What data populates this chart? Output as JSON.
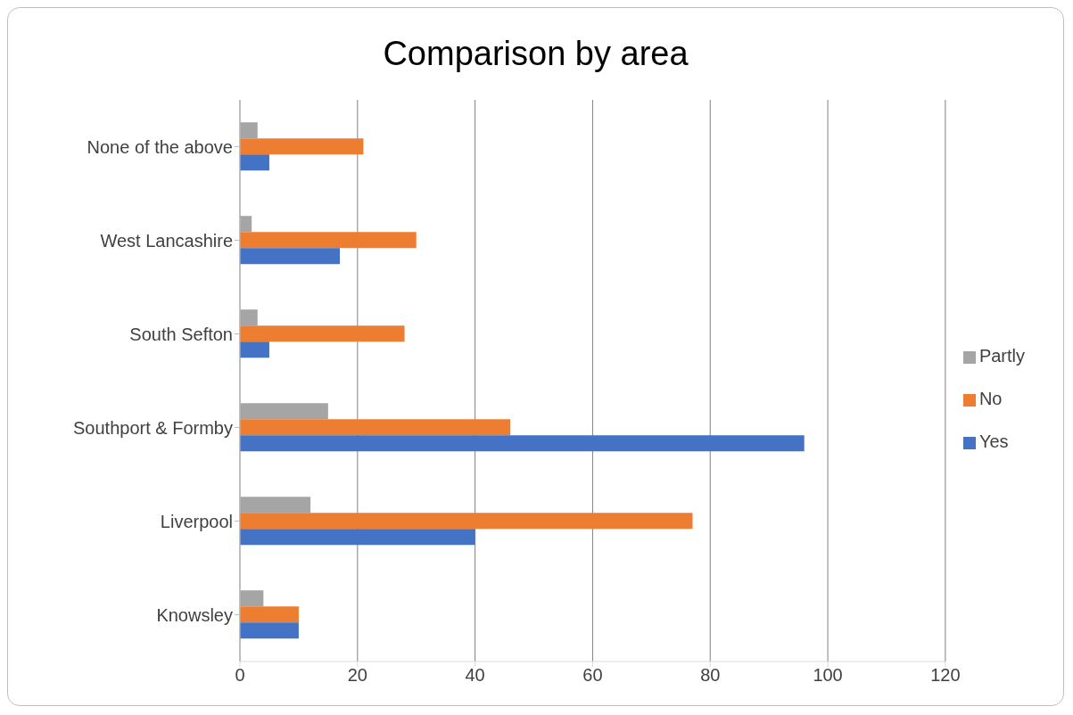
{
  "chart_data": {
    "type": "bar",
    "orientation": "horizontal",
    "title": "Comparison by area",
    "categories": [
      "None of the above",
      "West Lancashire",
      "South Sefton",
      "Southport & Formby",
      "Liverpool",
      "Knowsley"
    ],
    "series": [
      {
        "name": "Partly",
        "color": "#a5a5a5",
        "values": [
          3,
          2,
          3,
          15,
          12,
          4
        ]
      },
      {
        "name": "No",
        "color": "#ed7d31",
        "values": [
          21,
          30,
          28,
          46,
          77,
          10
        ]
      },
      {
        "name": "Yes",
        "color": "#4472c4",
        "values": [
          5,
          17,
          5,
          96,
          40,
          10
        ]
      }
    ],
    "xlim": [
      0,
      120
    ],
    "xticks": [
      0,
      20,
      40,
      60,
      80,
      100,
      120
    ],
    "grid": "x",
    "legend": "right"
  }
}
